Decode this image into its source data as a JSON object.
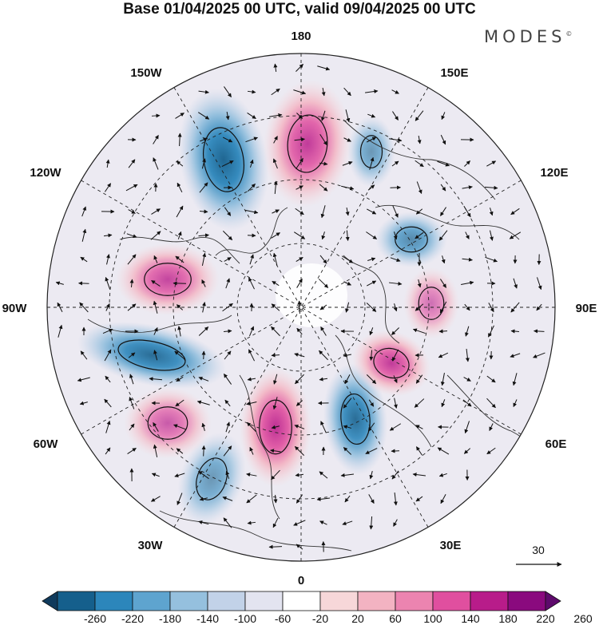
{
  "title": "Base 01/04/2025 00 UTC, valid 09/04/2025 00 UTC",
  "brand": "MODES",
  "brand_mark": "©",
  "longitude_labels": {
    "top": "180",
    "bottom": "0",
    "left": "90W",
    "right": "90E",
    "upper_left_1": "150W",
    "upper_left_2": "120W",
    "lower_left_1": "60W",
    "lower_left_2": "30W",
    "upper_right_1": "150E",
    "upper_right_2": "120E",
    "lower_right_1": "60E",
    "lower_right_2": "30E"
  },
  "reference_vector": {
    "label": "30"
  },
  "colorbar": {
    "ticks": [
      "-260",
      "-220",
      "-180",
      "-140",
      "-100",
      "-60",
      "-20",
      "20",
      "60",
      "100",
      "140",
      "180",
      "220",
      "260"
    ],
    "colors": [
      "#0f3a5c",
      "#155f8c",
      "#2c86bb",
      "#5ea4cf",
      "#95c0de",
      "#c2d2e8",
      "#e3e4f0",
      "#ffffff",
      "#f7d7d9",
      "#f3b3c2",
      "#ec84b0",
      "#e04f9f",
      "#b81c8a",
      "#8a0a7e",
      "#5e0a6c"
    ]
  },
  "anomaly_centres": [
    {
      "sign": "neg",
      "level": 0.95
    },
    {
      "sign": "pos",
      "level": 0.85
    },
    {
      "sign": "pos",
      "level": 0.8
    },
    {
      "sign": "neg",
      "level": 0.9
    },
    {
      "sign": "pos",
      "level": 0.9
    },
    {
      "sign": "neg",
      "level": 0.9
    },
    {
      "sign": "pos",
      "level": 0.85
    },
    {
      "sign": "neg",
      "level": 0.6
    },
    {
      "sign": "neg",
      "level": 0.7
    },
    {
      "sign": "pos",
      "level": 0.7
    },
    {
      "sign": "neg",
      "level": 0.6
    },
    {
      "sign": "pos",
      "level": 0.6
    }
  ]
}
